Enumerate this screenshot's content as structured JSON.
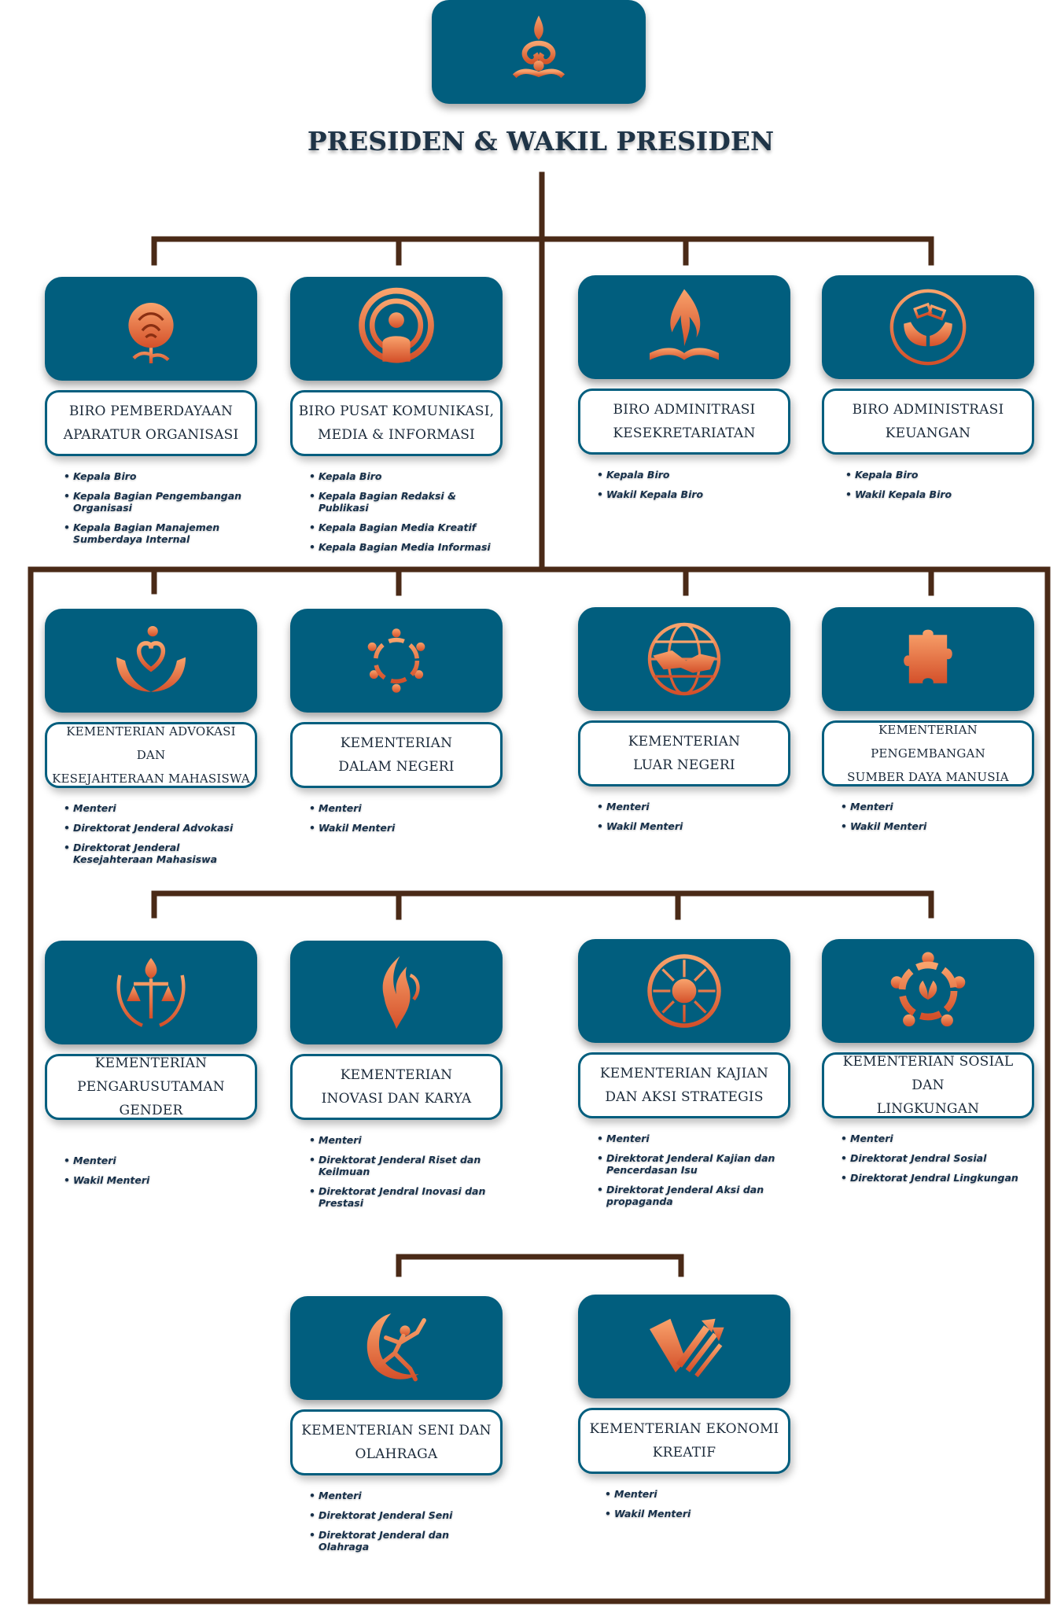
{
  "header": {
    "title": "PRESIDEN & WAKIL PRESIDEN",
    "logo_icon": "ornament-logo-icon"
  },
  "colors": {
    "box_fill": "#015e7e",
    "connector": "#4a2a17",
    "icon_orange": "#e8703a",
    "text_dark": "#1b2a3a"
  },
  "units": [
    {
      "name": "BIRO PEMBERDAYAAN APARATUR ORGANISASI",
      "lines": [
        "BIRO PEMBERDAYAAN",
        "APARATUR ORGANISASI"
      ],
      "icon": "rose-icon",
      "roles": [
        "Kepala Biro",
        "Kepala Bagian Pengembangan Organisasi",
        "Kepala Bagian Manajemen Sumberdaya Internal"
      ]
    },
    {
      "name": "BIRO PUSAT KOMUNIKASI, MEDIA & INFORMASI",
      "lines": [
        "BIRO PUSAT KOMUNIKASI,",
        "MEDIA & INFORMASI"
      ],
      "icon": "broadcast-person-icon",
      "roles": [
        "Kepala Biro",
        "Kepala Bagian Redaksi & Publikasi",
        "Kepala Bagian Media Kreatif",
        "Kepala Bagian Media Informasi"
      ]
    },
    {
      "name": "BIRO ADMINITRASI KESEKRETARIATAN",
      "lines": [
        "BIRO ADMINITRASI",
        "KESEKRETARIATAN"
      ],
      "icon": "flame-book-icon",
      "roles": [
        "Kepala Biro",
        "Wakil Kepala Biro"
      ]
    },
    {
      "name": "BIRO ADMINISTRASI KEUANGAN",
      "lines": [
        "BIRO ADMINISTRASI",
        "KEUANGAN"
      ],
      "icon": "money-hands-icon",
      "roles": [
        "Kepala Biro",
        "Wakil Kepala Biro"
      ]
    },
    {
      "name": "KEMENTERIAN ADVOKASI DAN KESEJAHTERAAN MAHASISWA",
      "lines": [
        "KEMENTERIAN ADVOKASI DAN",
        "KESEJAHTERAAN MAHASISWA"
      ],
      "icon": "heart-hands-icon",
      "roles": [
        "Menteri",
        "Direktorat Jenderal Advokasi",
        "Direktorat Jenderal Kesejahteraan Mahasiswa"
      ]
    },
    {
      "name": "KEMENTERIAN DALAM NEGERI",
      "lines": [
        "KEMENTERIAN",
        "DALAM NEGERI"
      ],
      "icon": "people-circle-icon",
      "roles": [
        "Menteri",
        "Wakil Menteri"
      ]
    },
    {
      "name": "KEMENTERIAN LUAR NEGERI",
      "lines": [
        "KEMENTERIAN",
        "LUAR NEGERI"
      ],
      "icon": "globe-handshake-icon",
      "roles": [
        "Menteri",
        "Wakil Menteri"
      ]
    },
    {
      "name": "KEMENTERIAN PENGEMBANGAN SUMBER DAYA MANUSIA",
      "lines": [
        "KEMENTERIAN PENGEMBANGAN",
        "SUMBER DAYA MANUSIA"
      ],
      "icon": "puzzle-piece-icon",
      "roles": [
        "Menteri",
        "Wakil Menteri"
      ]
    },
    {
      "name": "KEMENTERIAN PENGARUSUTAMAN GENDER",
      "lines": [
        "KEMENTERIAN",
        "PENGARUSUTAMAN GENDER"
      ],
      "icon": "scales-wreath-icon",
      "roles": [
        "Menteri",
        "Wakil Menteri"
      ]
    },
    {
      "name": "KEMENTERIAN INOVASI DAN KARYA",
      "lines": [
        "KEMENTERIAN",
        "INOVASI DAN KARYA"
      ],
      "icon": "phoenix-bulb-icon",
      "roles": [
        "Menteri",
        "Direktorat Jenderal Riset dan Keilmuan",
        "Direktorat Jendral Inovasi dan Prestasi"
      ]
    },
    {
      "name": "KEMENTERIAN KAJIAN DAN AKSI STRATEGIS",
      "lines": [
        "KEMENTERIAN KAJIAN",
        "DAN AKSI STRATEGIS"
      ],
      "icon": "fist-sunburst-icon",
      "roles": [
        "Menteri",
        "Direktorat Jenderal Kajian dan Pencerdasan Isu",
        "Direktorat Jenderal Aksi dan propaganda"
      ]
    },
    {
      "name": "KEMENTERIAN SOSIAL DAN LINGKUNGAN",
      "lines": [
        "KEMENTERIAN SOSIAL DAN",
        "LINGKUNGAN"
      ],
      "icon": "community-leaf-icon",
      "roles": [
        "Menteri",
        "Direktorat Jendral Sosial",
        "Direktorat Jendral Lingkungan"
      ]
    },
    {
      "name": "KEMENTERIAN SENI DAN OLAHRAGA",
      "lines": [
        "KEMENTERIAN SENI DAN",
        "OLAHRAGA"
      ],
      "icon": "dancer-icon",
      "roles": [
        "Menteri",
        "Direktorat Jenderal Seni",
        "Direktorat Jenderal dan Olahraga"
      ]
    },
    {
      "name": "KEMENTERIAN EKONOMI KREATIF",
      "lines": [
        "KEMENTERIAN EKONOMI",
        "KREATIF"
      ],
      "icon": "growth-arrows-icon",
      "roles": [
        "Menteri",
        "Wakil Menteri"
      ]
    }
  ]
}
